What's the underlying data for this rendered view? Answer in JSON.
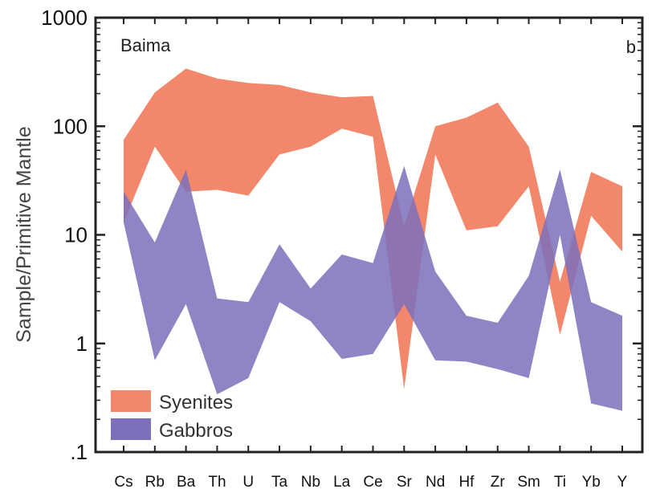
{
  "chart_data": {
    "type": "area",
    "scale": "log",
    "ylabel": "Sample/Primitive Mantle",
    "ylim": [
      0.1,
      1000
    ],
    "y_ticks": [
      "1000",
      "100",
      "10",
      "1",
      ".1"
    ],
    "y_tick_values": [
      1000,
      100,
      10,
      1,
      0.1
    ],
    "categories": [
      "Cs",
      "Rb",
      "Ba",
      "Th",
      "U",
      "Ta",
      "Nb",
      "La",
      "Ce",
      "Sr",
      "Nd",
      "Hf",
      "Zr",
      "Sm",
      "Ti",
      "Yb",
      "Y"
    ],
    "title": "Baima",
    "panel_label": "b",
    "legend_position": "bottom-left",
    "series": [
      {
        "name": "Syenites",
        "color": "#f2876b",
        "upper": [
          75,
          205,
          340,
          275,
          250,
          240,
          205,
          185,
          190,
          12,
          100,
          120,
          165,
          65,
          3.7,
          38,
          28
        ],
        "lower": [
          13,
          65,
          25,
          26,
          23,
          55,
          65,
          95,
          80,
          0.38,
          55,
          11,
          12,
          28,
          1.2,
          15,
          7
        ]
      },
      {
        "name": "Gabbros",
        "color": "#7b70bb",
        "upper": [
          25,
          8.5,
          40,
          2.6,
          2.4,
          8.2,
          3.2,
          6.6,
          5.5,
          43,
          4.6,
          1.8,
          1.55,
          4.2,
          40,
          2.4,
          1.8
        ],
        "lower": [
          13,
          0.7,
          2.3,
          0.34,
          0.48,
          2.4,
          1.6,
          0.72,
          0.8,
          2.3,
          0.7,
          0.68,
          0.58,
          0.48,
          10,
          0.28,
          0.24
        ]
      }
    ]
  }
}
